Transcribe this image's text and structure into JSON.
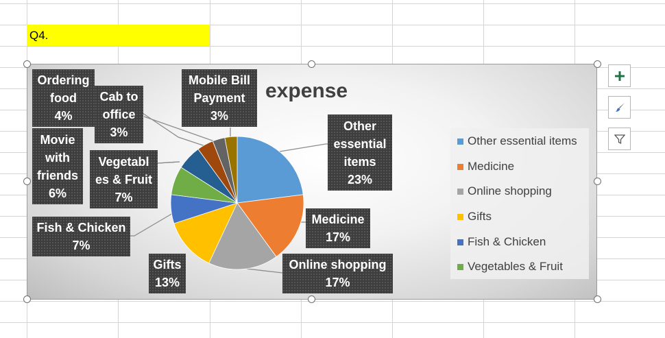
{
  "cell": {
    "text": "Q4."
  },
  "chart_data": {
    "type": "pie",
    "title": "expense",
    "categories": [
      "Other essential items",
      "Medicine",
      "Online shopping",
      "Gifts",
      "Fish & Chicken",
      "Vegetables & Fruit",
      "Movie with friends",
      "Ordering food",
      "Cab to office",
      "Mobile Bill Payment"
    ],
    "values": [
      23,
      17,
      17,
      13,
      7,
      7,
      6,
      4,
      3,
      3
    ],
    "colors": [
      "#5b9bd5",
      "#ed7d31",
      "#a5a5a5",
      "#ffc000",
      "#4472c4",
      "#70ad47",
      "#255e91",
      "#9e480e",
      "#636363",
      "#997300"
    ],
    "legend_position": "right",
    "labels": [
      {
        "lines": [
          "Other",
          "essential",
          "items"
        ],
        "pct": "23%"
      },
      {
        "lines": [
          "Medicine"
        ],
        "pct": "17%"
      },
      {
        "lines": [
          "Online shopping"
        ],
        "pct": "17%"
      },
      {
        "lines": [
          "Gifts"
        ],
        "pct": "13%"
      },
      {
        "lines": [
          "Fish & Chicken"
        ],
        "pct": "7%"
      },
      {
        "lines": [
          "Vegetabl",
          "es & Fruit"
        ],
        "pct": "7%"
      },
      {
        "lines": [
          "Movie",
          "with",
          "friends"
        ],
        "pct": "6%"
      },
      {
        "lines": [
          "Ordering",
          "food"
        ],
        "pct": "4%"
      },
      {
        "lines": [
          "Cab to",
          "office"
        ],
        "pct": "3%"
      },
      {
        "lines": [
          "Mobile Bill",
          "Payment"
        ],
        "pct": "3%"
      }
    ],
    "legend": [
      "Other essential items",
      "Medicine",
      "Online shopping",
      "Gifts",
      "Fish & Chicken",
      "Vegetables & Fruit"
    ]
  },
  "side_buttons": [
    "plus-icon",
    "brush-icon",
    "filter-icon"
  ]
}
